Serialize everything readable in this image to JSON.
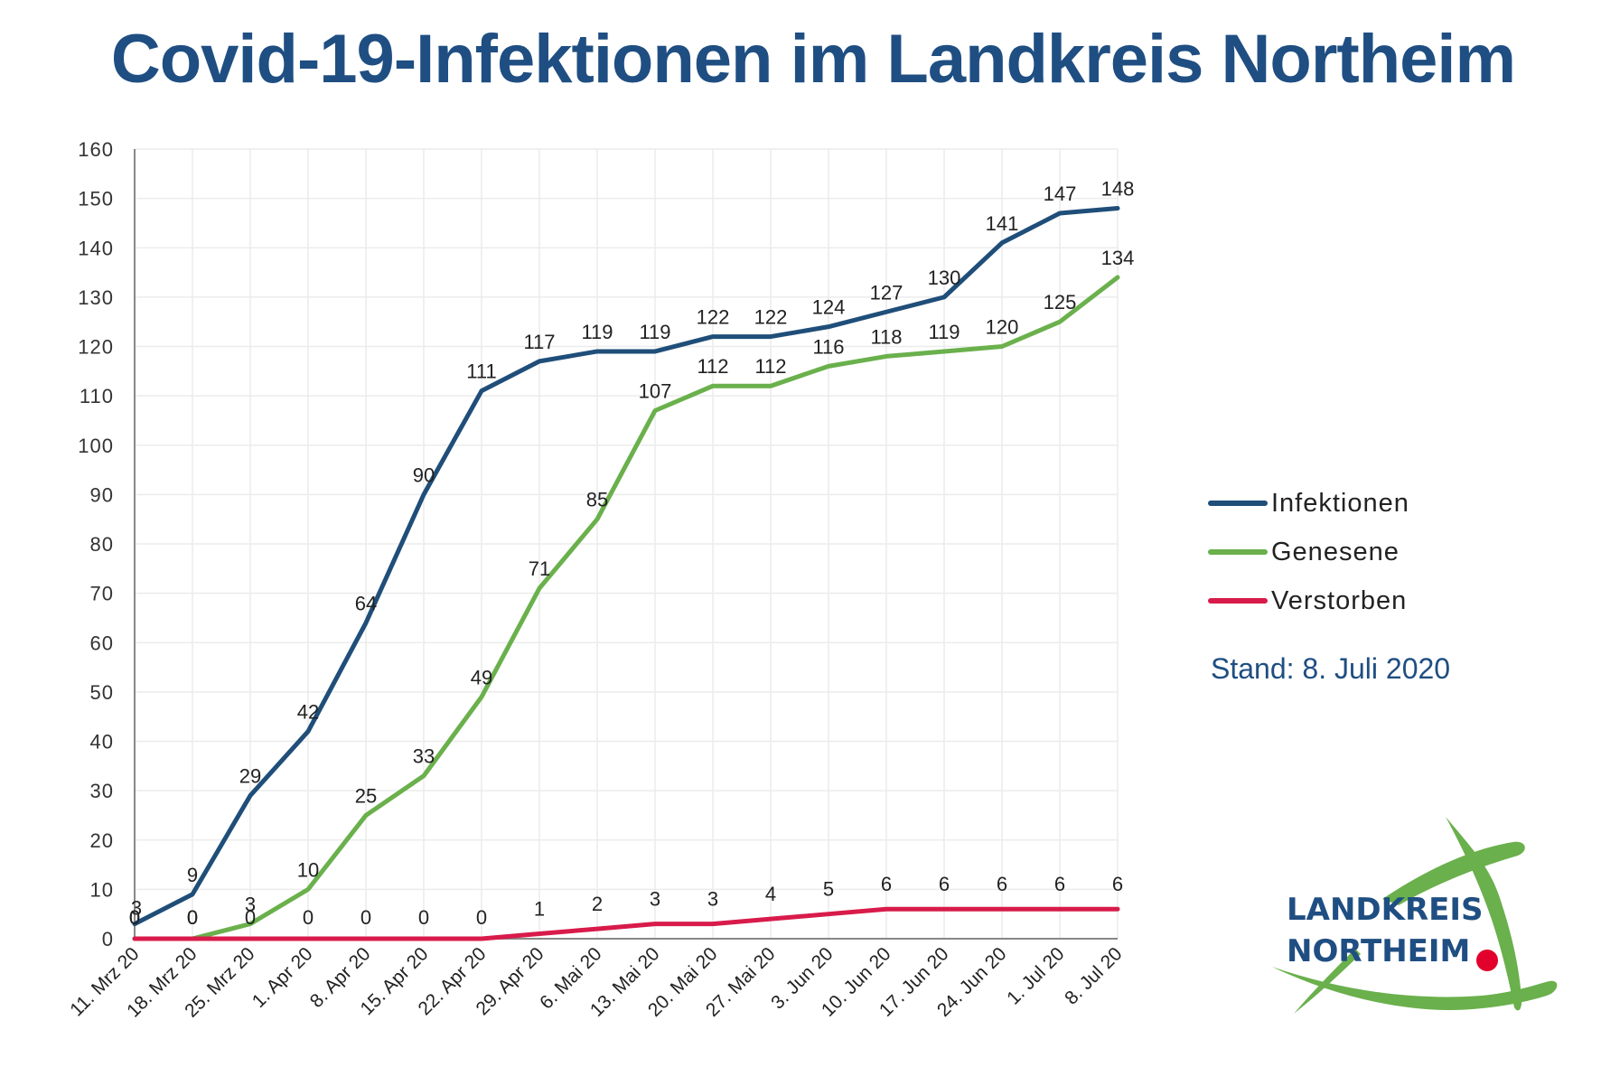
{
  "header": {
    "title": "Covid-19-Infektionen im Landkreis Northeim"
  },
  "stand": "Stand: 8. Juli 2020",
  "logo": {
    "line1": "LANDKREIS",
    "line2": "NORTHEIM"
  },
  "colors": {
    "title": "#1f4e82",
    "infektionen": "#1f4e79",
    "genesene": "#6ab04c",
    "verstorben": "#d81b4a",
    "grid": "#ececec"
  },
  "chart_data": {
    "type": "line",
    "title": "Covid-19-Infektionen im Landkreis Northeim",
    "xlabel": "",
    "ylabel": "",
    "ylim": [
      0,
      160
    ],
    "yticks": [
      0,
      10,
      20,
      30,
      40,
      50,
      60,
      70,
      80,
      90,
      100,
      110,
      120,
      130,
      140,
      150,
      160
    ],
    "grid": true,
    "legend_position": "right",
    "categories": [
      "11. Mrz 20",
      "18. Mrz 20",
      "25. Mrz 20",
      "1. Apr 20",
      "8. Apr 20",
      "15. Apr 20",
      "22. Apr 20",
      "29. Apr 20",
      "6. Mai 20",
      "13. Mai 20",
      "20. Mai 20",
      "27. Mai 20",
      "3. Jun 20",
      "10. Jun 20",
      "17. Jun 20",
      "24. Jun 20",
      "1. Jul 20",
      "8. Jul 20"
    ],
    "series": [
      {
        "name": "Infektionen",
        "color": "#1f4e79",
        "values": [
          3,
          9,
          29,
          42,
          64,
          90,
          111,
          117,
          119,
          119,
          122,
          122,
          124,
          127,
          130,
          141,
          147,
          148
        ]
      },
      {
        "name": "Genesene",
        "color": "#6ab04c",
        "values": [
          0,
          0,
          3,
          10,
          25,
          33,
          49,
          71,
          85,
          107,
          112,
          112,
          116,
          118,
          119,
          120,
          125,
          134
        ]
      },
      {
        "name": "Verstorben",
        "color": "#d81b4a",
        "values": [
          0,
          0,
          0,
          0,
          0,
          0,
          0,
          1,
          2,
          3,
          3,
          4,
          5,
          6,
          6,
          6,
          6,
          6
        ]
      }
    ]
  }
}
